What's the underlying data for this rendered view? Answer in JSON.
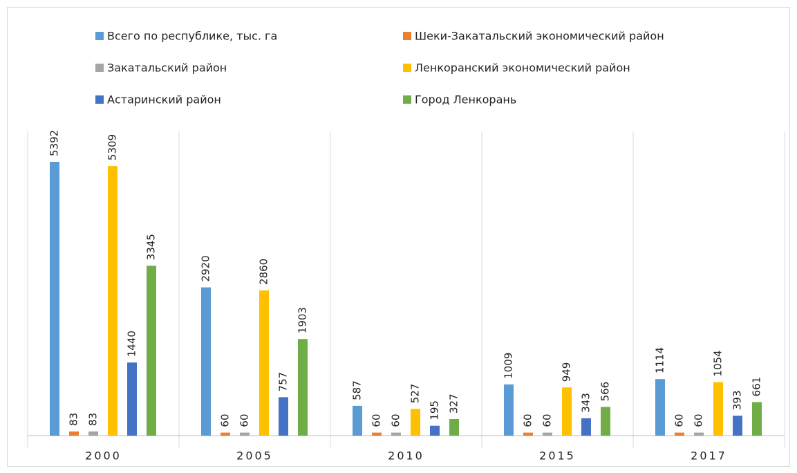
{
  "chart_data": {
    "type": "bar",
    "categories": [
      "2000",
      "2005",
      "2010",
      "2015",
      "2017"
    ],
    "series": [
      {
        "name": "Всего по республике, тыс. га",
        "color": "#5b9bd5",
        "values": [
          5392,
          2920,
          587,
          1009,
          1114
        ]
      },
      {
        "name": "Шеки-Закатальский экономический район",
        "color": "#ed7d31",
        "values": [
          83,
          60,
          60,
          60,
          60
        ]
      },
      {
        "name": "Закатальский район",
        "color": "#a5a5a5",
        "values": [
          83,
          60,
          60,
          60,
          60
        ]
      },
      {
        "name": "Ленкоранский экономический район",
        "color": "#ffc000",
        "values": [
          5309,
          2860,
          527,
          949,
          1054
        ]
      },
      {
        "name": "Астаринский район",
        "color": "#4472c4",
        "values": [
          1440,
          757,
          195,
          343,
          393
        ]
      },
      {
        "name": "Город Ленкорань",
        "color": "#70ad47",
        "values": [
          3345,
          1903,
          327,
          566,
          661
        ]
      }
    ],
    "legend": "top"
  }
}
